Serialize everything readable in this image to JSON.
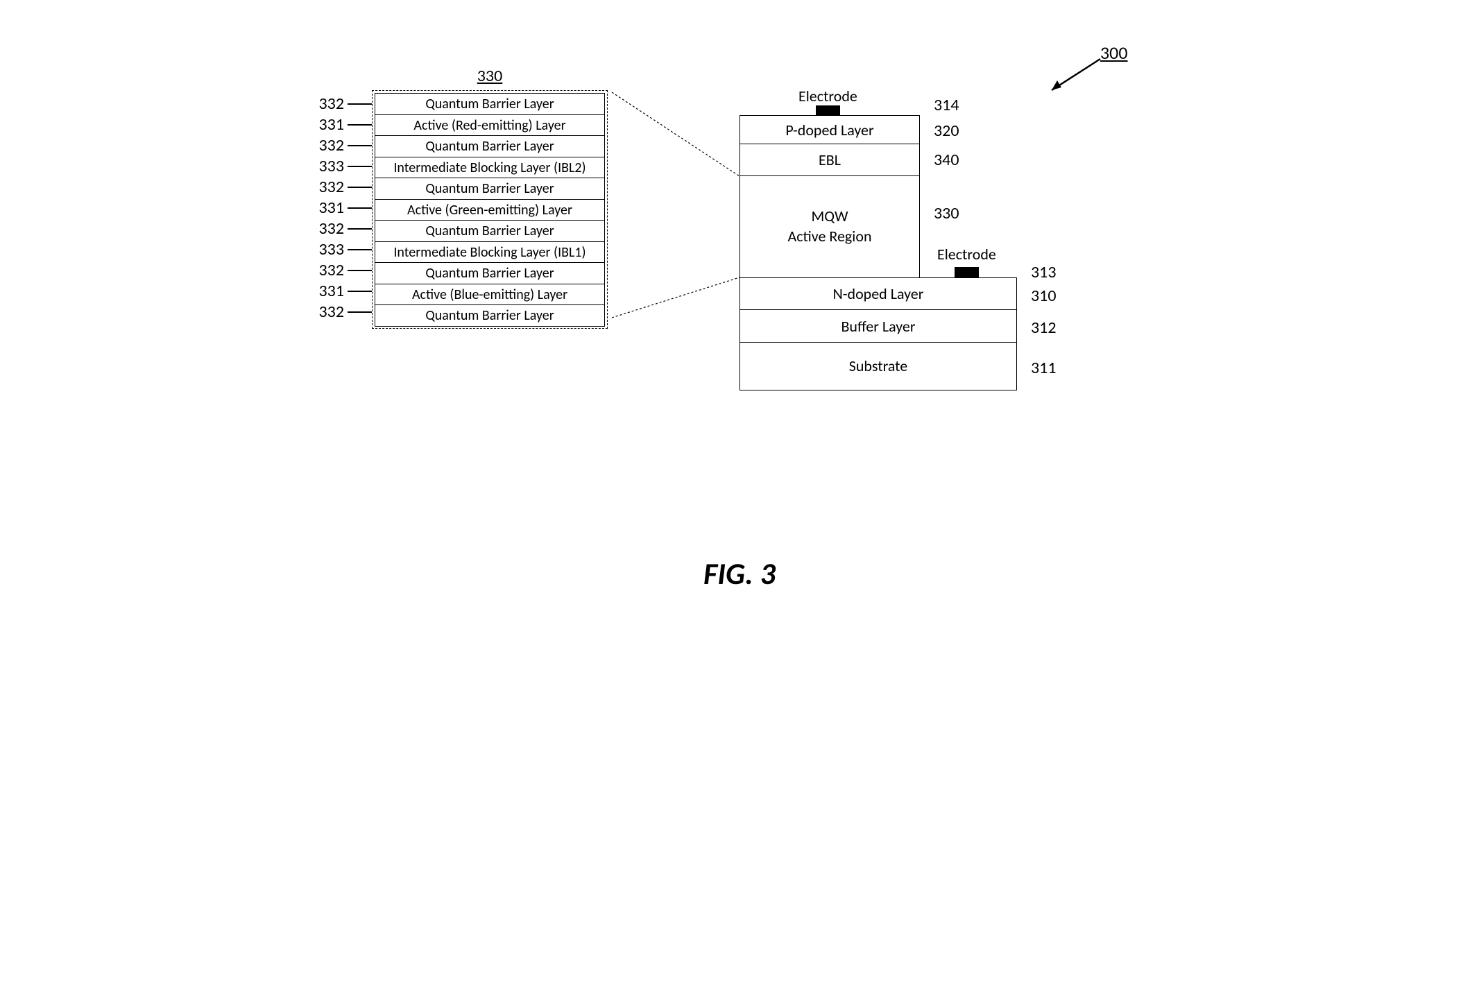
{
  "figure": {
    "caption": "FIG. 3",
    "main_ref": "300",
    "detail_ref": "330"
  },
  "detail_layers": [
    {
      "ref": "332",
      "label": "Quantum Barrier Layer"
    },
    {
      "ref": "331",
      "label": "Active (Red-emitting) Layer"
    },
    {
      "ref": "332",
      "label": "Quantum Barrier Layer"
    },
    {
      "ref": "333",
      "label": "Intermediate Blocking Layer (IBL2)"
    },
    {
      "ref": "332",
      "label": "Quantum Barrier Layer"
    },
    {
      "ref": "331",
      "label": "Active (Green-emitting) Layer"
    },
    {
      "ref": "332",
      "label": "Quantum Barrier Layer"
    },
    {
      "ref": "333",
      "label": "Intermediate Blocking Layer (IBL1)"
    },
    {
      "ref": "332",
      "label": "Quantum Barrier Layer"
    },
    {
      "ref": "331",
      "label": "Active (Blue-emitting) Layer"
    },
    {
      "ref": "332",
      "label": "Quantum Barrier Layer"
    }
  ],
  "device": {
    "electrode_top_label": "Electrode",
    "electrode_bottom_label": "Electrode",
    "layers": {
      "electrode_top_ref": "314",
      "p_doped": {
        "label": "P-doped Layer",
        "ref": "320"
      },
      "ebl": {
        "label": "EBL",
        "ref": "340"
      },
      "mqw": {
        "label": "MQW\nActive Region",
        "ref": "330"
      },
      "electrode_bottom_ref": "313",
      "n_doped": {
        "label": "N-doped Layer",
        "ref": "310"
      },
      "buffer": {
        "label": "Buffer Layer",
        "ref": "312"
      },
      "substrate": {
        "label": "Substrate",
        "ref": "311"
      }
    }
  },
  "styling": {
    "colors": {
      "stroke": "#000000",
      "background": "#ffffff",
      "electrode_fill": "#000000"
    },
    "font_family": "Calibri, Arial, sans-serif",
    "detail_row_fontsize": 20,
    "device_fontsize": 22,
    "ref_fontsize": 24,
    "caption_fontsize": 44,
    "detail_row_height": 30,
    "narrow_width": 260,
    "wide_width": 400,
    "border_width": 1.5,
    "dashed_border": "1.5px dashed #000"
  }
}
